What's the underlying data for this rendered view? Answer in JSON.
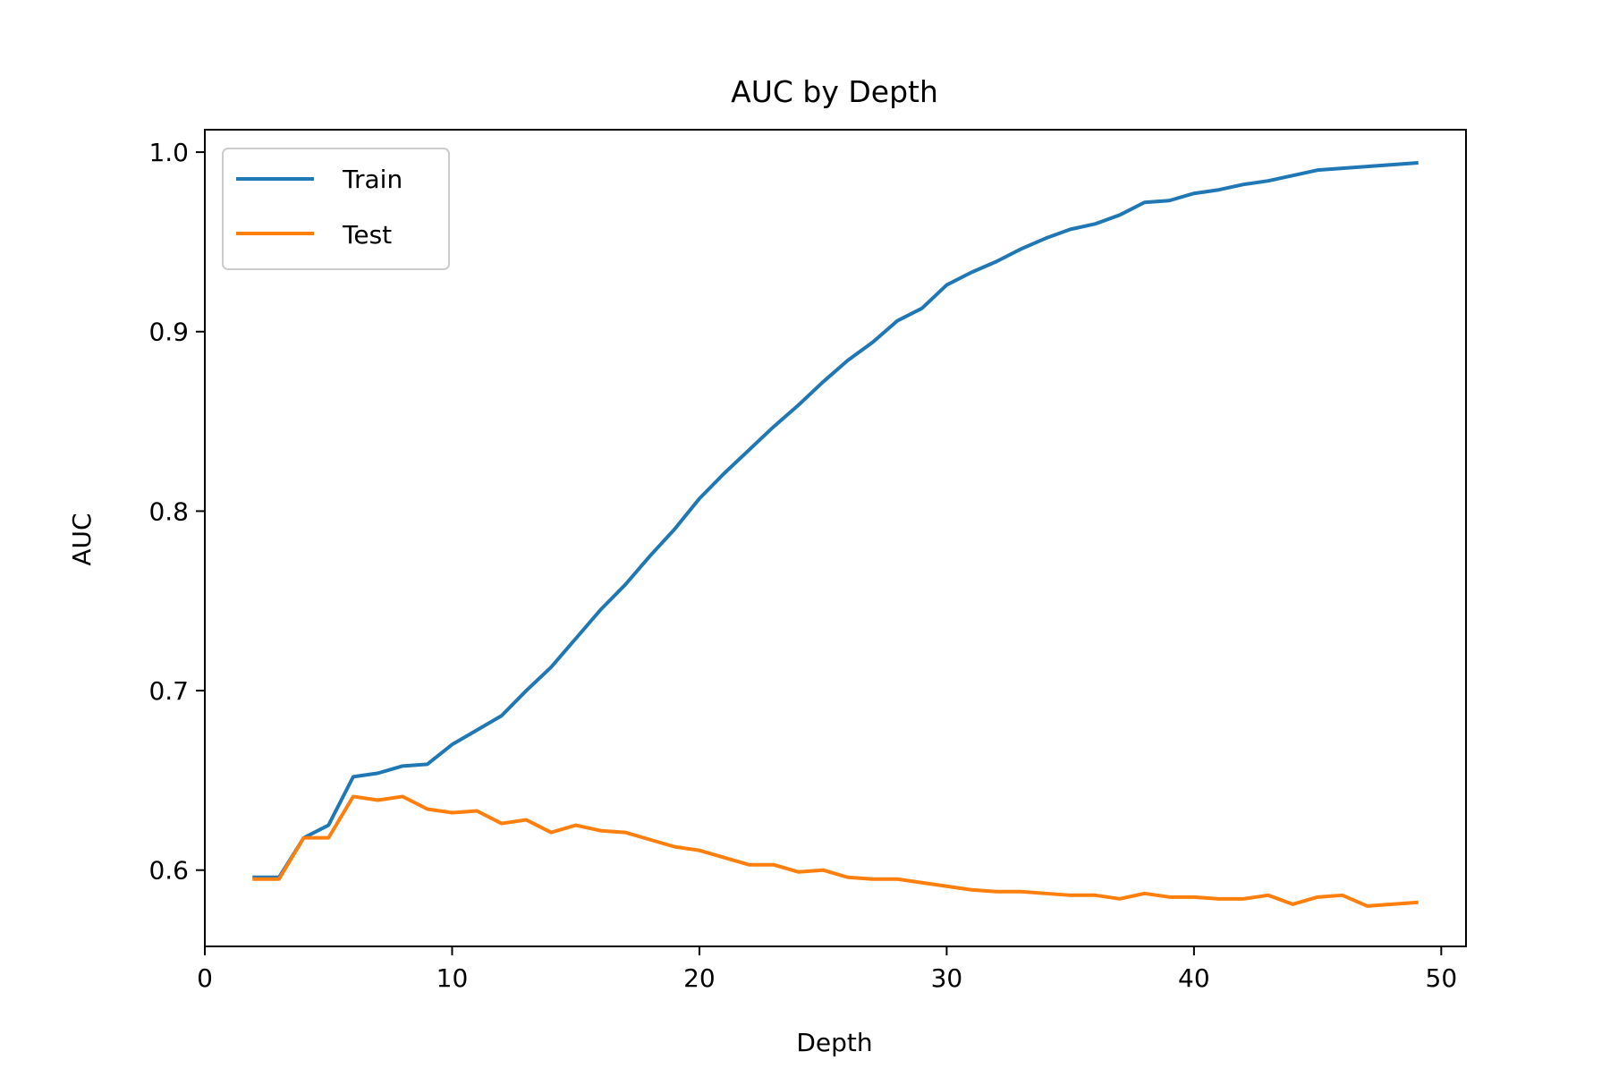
{
  "chart_data": {
    "type": "line",
    "title": "AUC by Depth",
    "xlabel": "Depth",
    "ylabel": "AUC",
    "xlim": [
      0,
      51
    ],
    "ylim": [
      0.5575,
      1.0125
    ],
    "xticks": [
      0,
      10,
      20,
      30,
      40,
      50
    ],
    "xtick_labels": [
      "0",
      "10",
      "20",
      "30",
      "40",
      "50"
    ],
    "yticks": [
      0.6,
      0.7,
      0.8,
      0.9,
      1.0
    ],
    "ytick_labels": [
      "0.6",
      "0.7",
      "0.8",
      "0.9",
      "1.0"
    ],
    "grid": false,
    "legend_position": "upper-left",
    "x": [
      2,
      3,
      4,
      5,
      6,
      7,
      8,
      9,
      10,
      11,
      12,
      13,
      14,
      15,
      16,
      17,
      18,
      19,
      20,
      21,
      22,
      23,
      24,
      25,
      26,
      27,
      28,
      29,
      30,
      31,
      32,
      33,
      34,
      35,
      36,
      37,
      38,
      39,
      40,
      41,
      42,
      43,
      44,
      45,
      46,
      47,
      48,
      49
    ],
    "series": [
      {
        "name": "Train",
        "color": "#1f77b4",
        "values": [
          0.596,
          0.596,
          0.618,
          0.625,
          0.652,
          0.654,
          0.658,
          0.659,
          0.67,
          0.678,
          0.686,
          0.7,
          0.713,
          0.729,
          0.745,
          0.759,
          0.775,
          0.79,
          0.807,
          0.821,
          0.834,
          0.847,
          0.859,
          0.872,
          0.884,
          0.894,
          0.906,
          0.913,
          0.926,
          0.933,
          0.939,
          0.946,
          0.952,
          0.957,
          0.96,
          0.965,
          0.972,
          0.973,
          0.977,
          0.979,
          0.982,
          0.984,
          0.987,
          0.99,
          0.991,
          0.992,
          0.993,
          0.994
        ]
      },
      {
        "name": "Test",
        "color": "#ff7f0e",
        "values": [
          0.595,
          0.595,
          0.618,
          0.618,
          0.641,
          0.639,
          0.641,
          0.634,
          0.632,
          0.633,
          0.626,
          0.628,
          0.621,
          0.625,
          0.622,
          0.621,
          0.617,
          0.613,
          0.611,
          0.607,
          0.603,
          0.603,
          0.599,
          0.6,
          0.596,
          0.595,
          0.595,
          0.593,
          0.591,
          0.589,
          0.588,
          0.588,
          0.587,
          0.586,
          0.586,
          0.584,
          0.587,
          0.585,
          0.585,
          0.584,
          0.584,
          0.586,
          0.581,
          0.585,
          0.586,
          0.58,
          0.581,
          0.582
        ]
      }
    ]
  }
}
